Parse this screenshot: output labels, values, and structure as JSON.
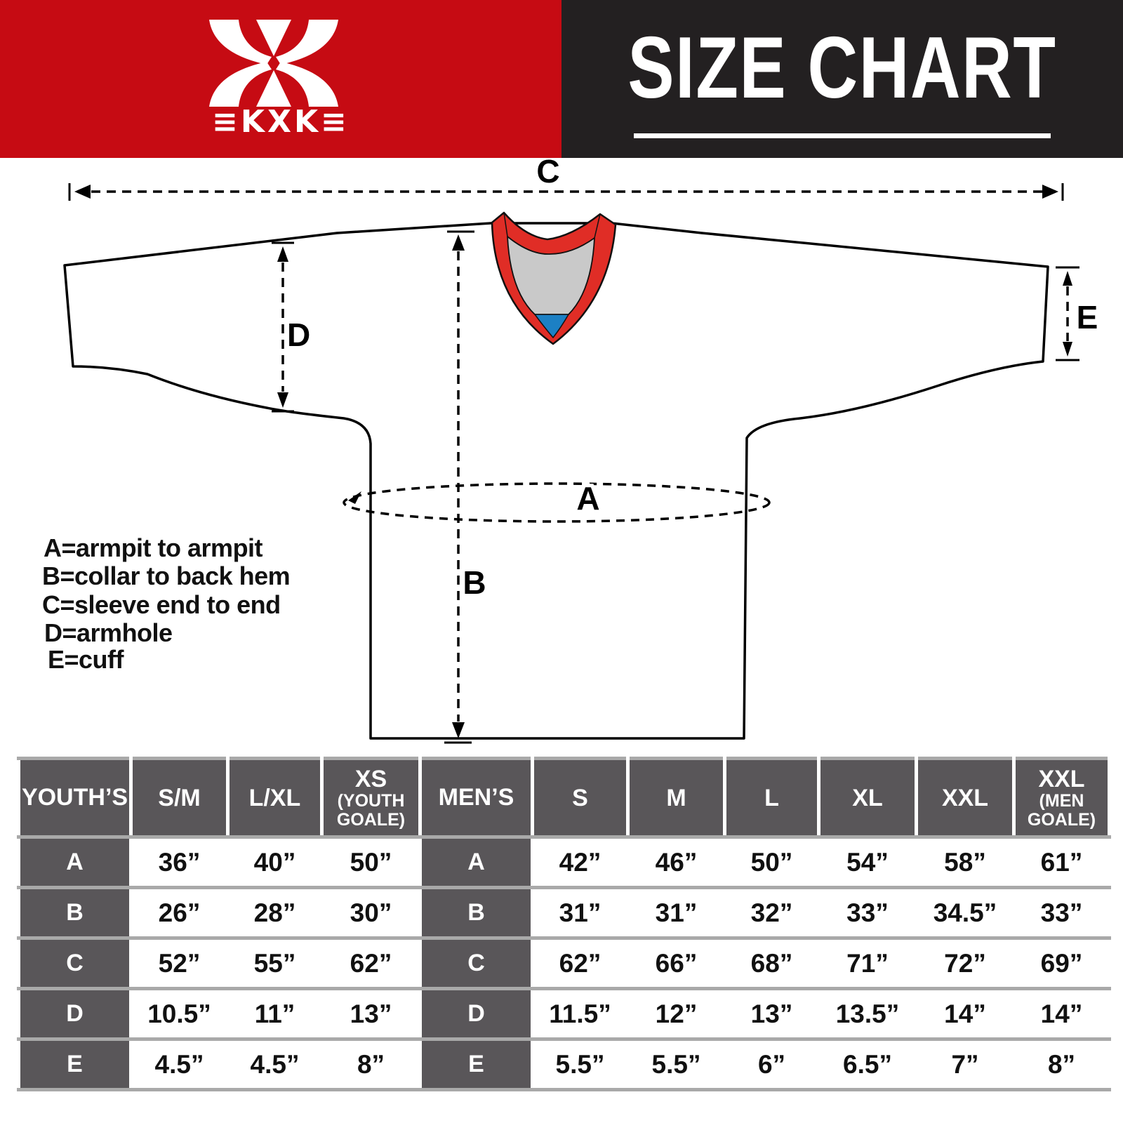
{
  "header": {
    "logo_text": "≡KXK≡",
    "brand": "KXK",
    "title": "SIZE CHART",
    "colors": {
      "brand_red": "#c60b13",
      "panel_black": "#232021"
    }
  },
  "diagram": {
    "labels": {
      "A": "A",
      "B": "B",
      "C": "C",
      "D": "D",
      "E": "E"
    },
    "legend": [
      "A=armpit to armpit",
      "B=collar to back hem",
      "C=sleeve end to end",
      "D=armhole",
      "E=cuff"
    ],
    "colors": {
      "collar_red": "#e02d26",
      "collar_gray": "#c9c9c9",
      "collar_blue": "#1c80c4"
    }
  },
  "size_table": {
    "row_labels": [
      "A",
      "B",
      "C",
      "D",
      "E"
    ],
    "youth": {
      "label": "YOUTH’S",
      "columns": [
        {
          "label": "S/M",
          "sub_lines": []
        },
        {
          "label": "L/XL",
          "sub_lines": []
        },
        {
          "label": "XS",
          "sub_lines": [
            "(YOUTH",
            "GOALE)"
          ]
        }
      ],
      "values": {
        "A": [
          "36”",
          "40”",
          "50”"
        ],
        "B": [
          "26”",
          "28”",
          "30”"
        ],
        "C": [
          "52”",
          "55”",
          "62”"
        ],
        "D": [
          "10.5”",
          "11”",
          "13”"
        ],
        "E": [
          "4.5”",
          "4.5”",
          "8”"
        ]
      }
    },
    "mens": {
      "label": "MEN’S",
      "columns": [
        {
          "label": "S",
          "sub_lines": []
        },
        {
          "label": "M",
          "sub_lines": []
        },
        {
          "label": "L",
          "sub_lines": []
        },
        {
          "label": "XL",
          "sub_lines": []
        },
        {
          "label": "XXL",
          "sub_lines": []
        },
        {
          "label": "XXL",
          "sub_lines": [
            "(MEN",
            "GOALE)"
          ]
        }
      ],
      "values": {
        "A": [
          "42”",
          "46”",
          "50”",
          "54”",
          "58”",
          "61”"
        ],
        "B": [
          "31”",
          "31”",
          "32”",
          "33”",
          "34.5”",
          "33”"
        ],
        "C": [
          "62”",
          "66”",
          "68”",
          "71”",
          "72”",
          "69”"
        ],
        "D": [
          "11.5”",
          "12”",
          "13”",
          "13.5”",
          "14”",
          "14”"
        ],
        "E": [
          "5.5”",
          "5.5”",
          "6”",
          "6.5”",
          "7”",
          "8”"
        ]
      }
    }
  }
}
